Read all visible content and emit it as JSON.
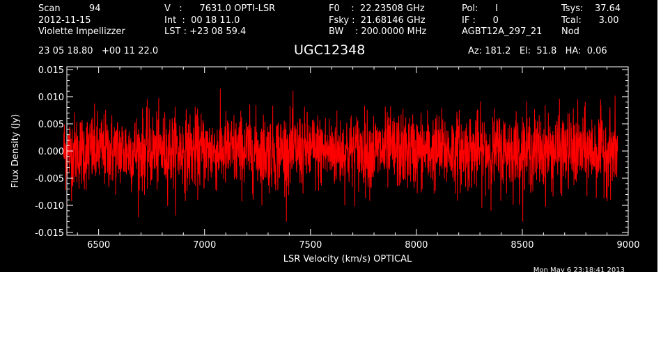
{
  "header": {
    "col1": [
      "Scan          94",
      "2012-11-15",
      "Violette Impellizzer"
    ],
    "col2": [
      "V   :      7631.0 OPTI-LSR",
      "Int  :  00 18 11.0",
      "LST : +23 08 59.4"
    ],
    "col3": [
      "F0    :  22.23508 GHz",
      "Fsky :  21.68146 GHz",
      "BW    : 200.0000 MHz"
    ],
    "col4": [
      "Pol:      I",
      "IF :      0",
      "AGBT12A_297_21"
    ],
    "col5": [
      "Tsys:    37.64",
      "Tcal:      3.00",
      "Nod"
    ],
    "coords": "23 05 18.80   +00 11 22.0",
    "azel": "Az: 181.2   El:  51.8   HA:  0.06",
    "timestamp": "Mon May  6 23:18:41 2013"
  },
  "chart_data": {
    "type": "line",
    "title": "UGC12348",
    "xlabel": "LSR Velocity (km/s) OPTICAL",
    "ylabel": "Flux Density (Jy)",
    "xlim": [
      6350,
      9000
    ],
    "ylim": [
      -0.0155,
      0.0155
    ],
    "x_ticks": [
      6500,
      7000,
      7500,
      8000,
      8500,
      9000
    ],
    "y_ticks": [
      -0.015,
      -0.01,
      -0.005,
      0.0,
      0.005,
      0.01,
      0.015
    ],
    "x_tick_labels": [
      "6500",
      "7000",
      "7500",
      "8000",
      "8500",
      "9000"
    ],
    "y_tick_labels": [
      "-0.015",
      "-0.010",
      "-0.005",
      "0.000",
      "0.005",
      "0.010",
      "0.015"
    ],
    "x_range": [
      6335,
      8950
    ],
    "series": [
      {
        "color": "#ff0000",
        "mean": 0.0,
        "noise_rms": 0.0035,
        "peak_max": 0.0142,
        "peak_min": -0.013
      }
    ],
    "grid": false,
    "background": "#000000",
    "axis_color": "#ffffff"
  }
}
